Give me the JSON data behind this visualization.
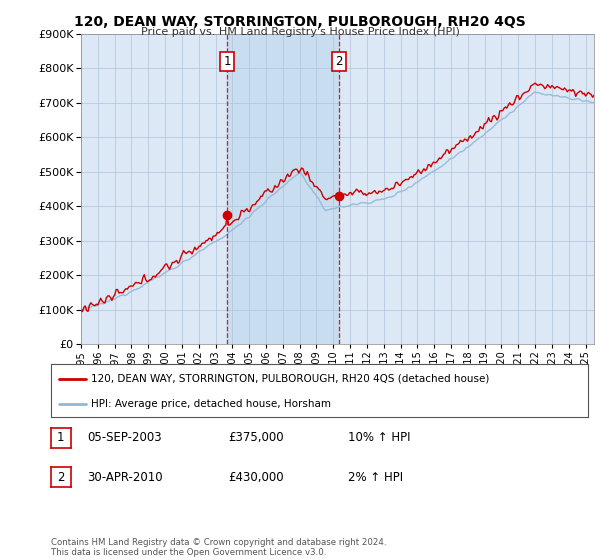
{
  "title": "120, DEAN WAY, STORRINGTON, PULBOROUGH, RH20 4QS",
  "subtitle": "Price paid vs. HM Land Registry's House Price Index (HPI)",
  "ylim": [
    0,
    900000
  ],
  "xlim_start": 1995,
  "xlim_end": 2025.5,
  "hpi_color": "#90b8d8",
  "price_color": "#cc0000",
  "sale1_date": 2003.68,
  "sale1_price": 375000,
  "sale2_date": 2010.33,
  "sale2_price": 430000,
  "legend_house": "120, DEAN WAY, STORRINGTON, PULBOROUGH, RH20 4QS (detached house)",
  "legend_hpi": "HPI: Average price, detached house, Horsham",
  "table_row1": [
    "1",
    "05-SEP-2003",
    "£375,000",
    "10% ↑ HPI"
  ],
  "table_row2": [
    "2",
    "30-APR-2010",
    "£430,000",
    "2% ↑ HPI"
  ],
  "footnote": "Contains HM Land Registry data © Crown copyright and database right 2024.\nThis data is licensed under the Open Government Licence v3.0.",
  "bg_color": "#dce8f5",
  "shade_color": "#c8ddf0",
  "plot_bg": "#ffffff",
  "vline_color": "#cc0000",
  "grid_color": "#b0c4d8"
}
